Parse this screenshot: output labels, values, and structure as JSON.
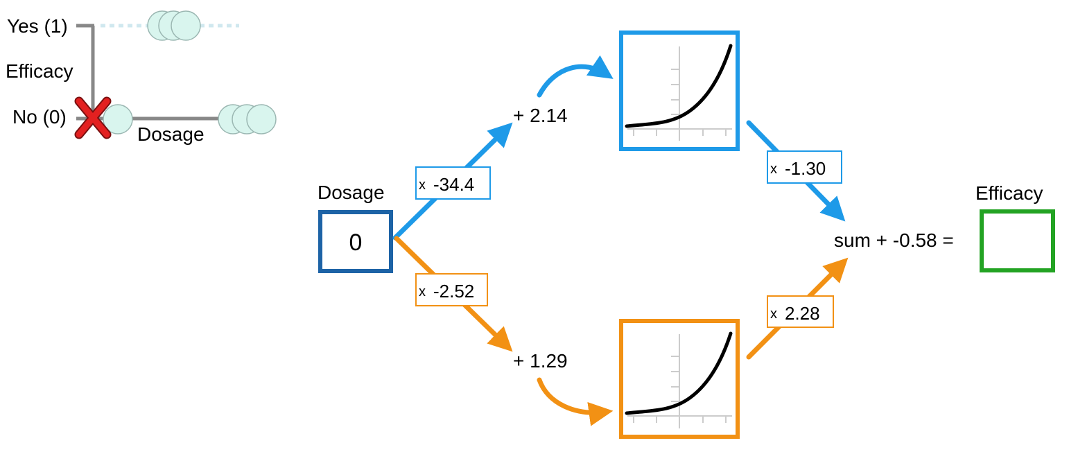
{
  "colors": {
    "blue": "#1e9ae8",
    "orange": "#f29114",
    "input_box": "#1d63a6",
    "output_box": "#23a323",
    "red_x": "#e32020",
    "dot_fill": "#d9f5ee",
    "dot_stroke": "#9bb7b2",
    "axis_gray": "#888888",
    "curve": "#000000"
  },
  "mini_plot": {
    "ylabel": "Efficacy",
    "xlabel": "Dosage",
    "tick_yes": "Yes (1)",
    "tick_no": "No (0)",
    "marker": "X",
    "marker_icon": "red-x-icon"
  },
  "network": {
    "input_label": "Dosage",
    "input_value": "0",
    "output_label": "Efficacy",
    "output_value": "",
    "top": {
      "weight_prefix": "x",
      "weight": "-34.4",
      "bias": "+ 2.14",
      "out_prefix": "x",
      "out_weight": "-1.30"
    },
    "bottom": {
      "weight_prefix": "x",
      "weight": "-2.52",
      "bias": "+ 1.29",
      "out_prefix": "x",
      "out_weight": "2.28"
    },
    "sum": "sum + -0.58 ="
  }
}
